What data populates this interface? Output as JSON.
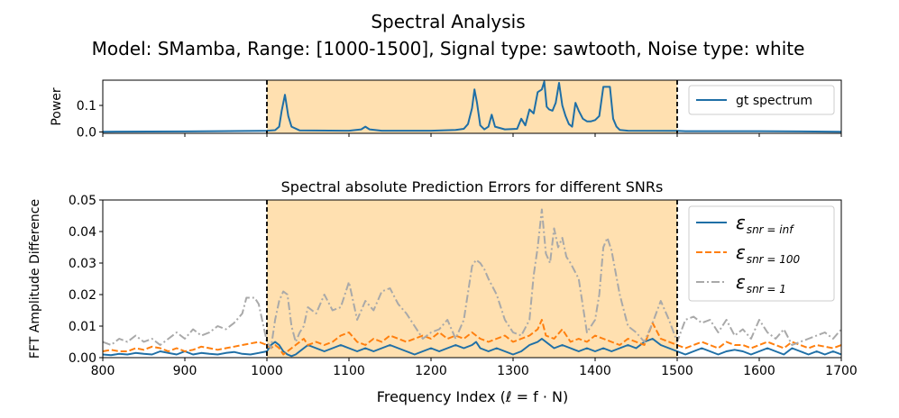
{
  "figure": {
    "title_line1": "Spectral Analysis",
    "title_line2": "Model: SMamba, Range: [1000-1500], Signal type: sawtooth, Noise type: white",
    "xlabel": "Frequency Index (ℓ = f · N)"
  },
  "colors": {
    "blue": "#1f6fa6",
    "orange": "#ff7f0e",
    "gray": "#a9a9a9",
    "highlight": "#ffe0b0"
  },
  "chart_data": [
    {
      "type": "line",
      "panel": "top",
      "title": "",
      "xlabel": "",
      "ylabel": "Power",
      "xlim": [
        800,
        1700
      ],
      "ylim": [
        -0.005,
        0.195
      ],
      "yticks": [
        0.0,
        0.1
      ],
      "ytick_labels": [
        "0.0",
        "0.1"
      ],
      "xticks": [
        800,
        900,
        1000,
        1100,
        1200,
        1300,
        1400,
        1500,
        1600,
        1700
      ],
      "highlight_range": [
        1000,
        1500
      ],
      "vlines": [
        1000,
        1500
      ],
      "legend": {
        "location": "upper right",
        "entries": [
          "gt spectrum"
        ]
      },
      "series": [
        {
          "name": "gt spectrum",
          "style": "solid",
          "x": [
            800,
            900,
            990,
            1000,
            1010,
            1015,
            1018,
            1022,
            1026,
            1030,
            1040,
            1100,
            1115,
            1120,
            1125,
            1140,
            1200,
            1230,
            1240,
            1245,
            1250,
            1253,
            1256,
            1260,
            1265,
            1270,
            1274,
            1278,
            1290,
            1305,
            1310,
            1315,
            1320,
            1325,
            1330,
            1335,
            1338,
            1341,
            1344,
            1348,
            1352,
            1356,
            1360,
            1364,
            1368,
            1372,
            1376,
            1380,
            1385,
            1390,
            1395,
            1400,
            1405,
            1410,
            1414,
            1418,
            1422,
            1426,
            1430,
            1440,
            1490,
            1500,
            1510,
            1600,
            1700
          ],
          "y": [
            0.001,
            0.002,
            0.004,
            0.005,
            0.007,
            0.02,
            0.08,
            0.14,
            0.06,
            0.02,
            0.006,
            0.005,
            0.01,
            0.02,
            0.01,
            0.005,
            0.005,
            0.008,
            0.012,
            0.03,
            0.09,
            0.16,
            0.11,
            0.025,
            0.01,
            0.02,
            0.065,
            0.02,
            0.01,
            0.012,
            0.05,
            0.025,
            0.085,
            0.07,
            0.15,
            0.16,
            0.19,
            0.095,
            0.085,
            0.08,
            0.11,
            0.185,
            0.1,
            0.06,
            0.03,
            0.02,
            0.11,
            0.08,
            0.05,
            0.04,
            0.04,
            0.045,
            0.06,
            0.17,
            0.17,
            0.17,
            0.05,
            0.02,
            0.008,
            0.005,
            0.004,
            0.004,
            0.003,
            0.003,
            0.001
          ]
        }
      ]
    },
    {
      "type": "line",
      "panel": "bottom",
      "title": "Spectral absolute Prediction Errors for different SNRs",
      "xlabel": "Frequency Index (ℓ = f · N)",
      "ylabel": "FFT Amplitude Difference",
      "xlim": [
        800,
        1700
      ],
      "ylim": [
        0.0,
        0.05
      ],
      "yticks": [
        0.0,
        0.01,
        0.02,
        0.03,
        0.04,
        0.05
      ],
      "ytick_labels": [
        "0.00",
        "0.01",
        "0.02",
        "0.03",
        "0.04",
        "0.05"
      ],
      "xticks": [
        800,
        900,
        1000,
        1100,
        1200,
        1300,
        1400,
        1500,
        1600,
        1700
      ],
      "xtick_labels": [
        "800",
        "900",
        "1000",
        "1100",
        "1200",
        "1300",
        "1400",
        "1500",
        "1600",
        "1700"
      ],
      "highlight_range": [
        1000,
        1500
      ],
      "vlines": [
        1000,
        1500
      ],
      "legend": {
        "location": "upper right",
        "entries": [
          "ε_snr=inf",
          "ε_snr=100",
          "ε_snr=1"
        ]
      },
      "series": [
        {
          "name": "ε snr=inf",
          "legend_main": "ε",
          "legend_sub": "snr = inf",
          "style": "solid",
          "x": [
            800,
            810,
            820,
            830,
            840,
            850,
            860,
            870,
            880,
            890,
            900,
            910,
            920,
            930,
            940,
            950,
            960,
            970,
            980,
            990,
            1000,
            1005,
            1010,
            1015,
            1020,
            1025,
            1030,
            1035,
            1040,
            1045,
            1050,
            1060,
            1070,
            1080,
            1090,
            1100,
            1110,
            1120,
            1130,
            1140,
            1150,
            1160,
            1170,
            1180,
            1190,
            1200,
            1210,
            1220,
            1230,
            1240,
            1250,
            1255,
            1260,
            1270,
            1280,
            1290,
            1300,
            1310,
            1320,
            1330,
            1335,
            1340,
            1350,
            1360,
            1370,
            1380,
            1390,
            1400,
            1410,
            1420,
            1430,
            1440,
            1450,
            1460,
            1470,
            1480,
            1490,
            1500,
            1510,
            1520,
            1530,
            1540,
            1550,
            1560,
            1570,
            1580,
            1590,
            1600,
            1610,
            1620,
            1630,
            1640,
            1650,
            1660,
            1670,
            1680,
            1690,
            1700
          ],
          "y": [
            0.001,
            0.0008,
            0.0012,
            0.001,
            0.0015,
            0.0012,
            0.001,
            0.002,
            0.0015,
            0.001,
            0.002,
            0.001,
            0.0015,
            0.0012,
            0.001,
            0.0015,
            0.0018,
            0.0012,
            0.001,
            0.0015,
            0.002,
            0.004,
            0.005,
            0.004,
            0.002,
            0.001,
            0.0005,
            0.001,
            0.002,
            0.003,
            0.004,
            0.003,
            0.002,
            0.003,
            0.004,
            0.003,
            0.002,
            0.003,
            0.002,
            0.003,
            0.004,
            0.003,
            0.002,
            0.001,
            0.002,
            0.003,
            0.002,
            0.003,
            0.004,
            0.003,
            0.004,
            0.005,
            0.003,
            0.002,
            0.003,
            0.002,
            0.001,
            0.002,
            0.004,
            0.005,
            0.006,
            0.005,
            0.003,
            0.004,
            0.003,
            0.002,
            0.003,
            0.002,
            0.003,
            0.002,
            0.003,
            0.004,
            0.003,
            0.005,
            0.006,
            0.004,
            0.003,
            0.002,
            0.001,
            0.002,
            0.003,
            0.002,
            0.001,
            0.002,
            0.0025,
            0.002,
            0.001,
            0.002,
            0.003,
            0.002,
            0.001,
            0.003,
            0.002,
            0.001,
            0.002,
            0.001,
            0.002,
            0.001
          ]
        },
        {
          "name": "ε snr=100",
          "legend_main": "ε",
          "legend_sub": "snr = 100",
          "style": "dashed",
          "x": [
            800,
            810,
            820,
            830,
            840,
            850,
            860,
            870,
            880,
            890,
            900,
            910,
            920,
            930,
            940,
            950,
            960,
            970,
            980,
            990,
            1000,
            1005,
            1010,
            1015,
            1020,
            1025,
            1030,
            1035,
            1040,
            1045,
            1050,
            1060,
            1070,
            1080,
            1090,
            1100,
            1110,
            1120,
            1130,
            1140,
            1150,
            1160,
            1170,
            1180,
            1190,
            1200,
            1210,
            1220,
            1230,
            1240,
            1250,
            1255,
            1260,
            1270,
            1280,
            1290,
            1300,
            1310,
            1320,
            1330,
            1335,
            1340,
            1350,
            1360,
            1370,
            1380,
            1390,
            1400,
            1410,
            1420,
            1430,
            1440,
            1450,
            1460,
            1470,
            1480,
            1490,
            1500,
            1510,
            1520,
            1530,
            1540,
            1550,
            1560,
            1570,
            1580,
            1590,
            1600,
            1610,
            1620,
            1630,
            1640,
            1650,
            1660,
            1670,
            1680,
            1690,
            1700
          ],
          "y": [
            0.002,
            0.0025,
            0.002,
            0.002,
            0.003,
            0.0025,
            0.0035,
            0.003,
            0.002,
            0.003,
            0.002,
            0.0025,
            0.0035,
            0.003,
            0.0025,
            0.003,
            0.0035,
            0.004,
            0.0045,
            0.005,
            0.004,
            0.003,
            0.004,
            0.003,
            0.001,
            0.002,
            0.003,
            0.004,
            0.005,
            0.006,
            0.004,
            0.005,
            0.004,
            0.005,
            0.007,
            0.008,
            0.005,
            0.004,
            0.006,
            0.005,
            0.007,
            0.006,
            0.005,
            0.006,
            0.007,
            0.006,
            0.008,
            0.006,
            0.007,
            0.006,
            0.008,
            0.007,
            0.006,
            0.005,
            0.006,
            0.007,
            0.005,
            0.006,
            0.007,
            0.009,
            0.012,
            0.007,
            0.006,
            0.009,
            0.005,
            0.006,
            0.005,
            0.007,
            0.006,
            0.005,
            0.004,
            0.006,
            0.005,
            0.004,
            0.011,
            0.006,
            0.005,
            0.004,
            0.003,
            0.004,
            0.005,
            0.004,
            0.003,
            0.005,
            0.004,
            0.004,
            0.003,
            0.004,
            0.005,
            0.004,
            0.003,
            0.005,
            0.004,
            0.003,
            0.004,
            0.0035,
            0.003,
            0.004
          ]
        },
        {
          "name": "ε snr=1",
          "legend_main": "ε",
          "legend_sub": "snr = 1",
          "style": "dashdot",
          "x": [
            800,
            810,
            820,
            830,
            840,
            850,
            860,
            870,
            880,
            890,
            900,
            910,
            920,
            930,
            940,
            950,
            960,
            970,
            975,
            980,
            985,
            990,
            1000,
            1005,
            1010,
            1015,
            1020,
            1025,
            1030,
            1035,
            1040,
            1045,
            1050,
            1060,
            1070,
            1080,
            1090,
            1100,
            1110,
            1120,
            1130,
            1140,
            1150,
            1160,
            1170,
            1180,
            1190,
            1200,
            1210,
            1220,
            1230,
            1240,
            1250,
            1255,
            1260,
            1265,
            1270,
            1280,
            1290,
            1300,
            1310,
            1320,
            1325,
            1330,
            1335,
            1340,
            1345,
            1350,
            1355,
            1360,
            1365,
            1370,
            1380,
            1390,
            1400,
            1405,
            1410,
            1415,
            1420,
            1430,
            1440,
            1450,
            1460,
            1470,
            1480,
            1490,
            1500,
            1510,
            1520,
            1530,
            1540,
            1550,
            1560,
            1570,
            1580,
            1590,
            1600,
            1610,
            1620,
            1630,
            1640,
            1650,
            1660,
            1670,
            1680,
            1690,
            1700
          ],
          "y": [
            0.005,
            0.004,
            0.006,
            0.005,
            0.007,
            0.005,
            0.006,
            0.004,
            0.006,
            0.008,
            0.006,
            0.009,
            0.007,
            0.008,
            0.01,
            0.009,
            0.011,
            0.014,
            0.019,
            0.019,
            0.019,
            0.017,
            0.005,
            0.003,
            0.012,
            0.018,
            0.021,
            0.02,
            0.01,
            0.005,
            0.008,
            0.01,
            0.016,
            0.014,
            0.02,
            0.015,
            0.016,
            0.024,
            0.012,
            0.018,
            0.015,
            0.021,
            0.022,
            0.017,
            0.014,
            0.01,
            0.006,
            0.008,
            0.009,
            0.012,
            0.006,
            0.012,
            0.029,
            0.031,
            0.03,
            0.028,
            0.025,
            0.02,
            0.012,
            0.008,
            0.007,
            0.012,
            0.026,
            0.035,
            0.047,
            0.033,
            0.03,
            0.041,
            0.035,
            0.038,
            0.032,
            0.03,
            0.025,
            0.008,
            0.012,
            0.02,
            0.035,
            0.038,
            0.034,
            0.02,
            0.01,
            0.008,
            0.005,
            0.011,
            0.018,
            0.012,
            0.005,
            0.012,
            0.013,
            0.011,
            0.012,
            0.008,
            0.012,
            0.007,
            0.009,
            0.006,
            0.012,
            0.008,
            0.006,
            0.009,
            0.004,
            0.005,
            0.006,
            0.007,
            0.008,
            0.006,
            0.009
          ]
        }
      ]
    }
  ]
}
